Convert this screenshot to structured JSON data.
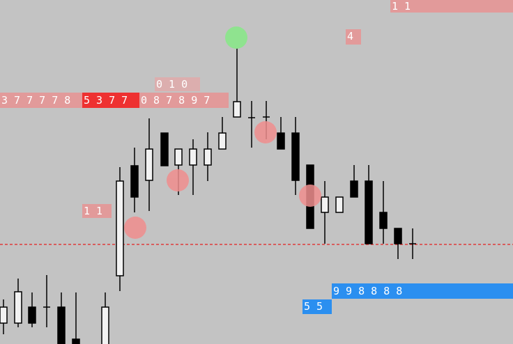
{
  "tags": {
    "top_right": "1 1",
    "four": "4",
    "mid_top": "0 1 0",
    "strip_left": "3 7 7 7 7 8",
    "strip_red": "5 3 7 7",
    "strip_right": "0 8 7 8 9 7",
    "left_mid": "1 1",
    "blue_long": "9 9 8 8 8 8",
    "blue_short": "5 5"
  }
}
